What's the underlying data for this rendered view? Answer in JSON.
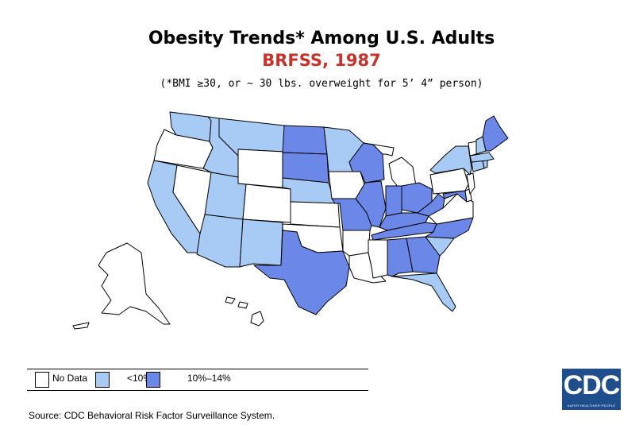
{
  "title": "Obesity Trends* Among U.S. Adults",
  "subtitle": "BRFSS, 1987",
  "note": "(*BMI ≥30, or ~ 30 lbs. overweight for 5’ 4” person)",
  "legend": {
    "items": [
      {
        "label": "No Data",
        "color": "#ffffff"
      },
      {
        "label": "<10%",
        "color": "#a8cbf5"
      },
      {
        "label": "10%–14%",
        "color": "#6b87e8"
      }
    ]
  },
  "source": "Source: CDC Behavioral Risk Factor Surveillance System.",
  "logo": {
    "text": "CDC",
    "tagline": "SAFER·HEALTHIER·PEOPLE"
  },
  "colors": {
    "no_data": "#ffffff",
    "under_10": "#a8cbf5",
    "from_10_to_14": "#6b87e8",
    "border": "#000000"
  },
  "states": [
    {
      "name": "WA",
      "category": "under_10"
    },
    {
      "name": "OR",
      "category": "no_data"
    },
    {
      "name": "CA",
      "category": "under_10"
    },
    {
      "name": "NV",
      "category": "no_data"
    },
    {
      "name": "ID",
      "category": "under_10"
    },
    {
      "name": "MT",
      "category": "under_10"
    },
    {
      "name": "WY",
      "category": "no_data"
    },
    {
      "name": "UT",
      "category": "under_10"
    },
    {
      "name": "AZ",
      "category": "under_10"
    },
    {
      "name": "CO",
      "category": "no_data"
    },
    {
      "name": "NM",
      "category": "under_10"
    },
    {
      "name": "ND",
      "category": "from_10_to_14"
    },
    {
      "name": "SD",
      "category": "from_10_to_14"
    },
    {
      "name": "NE",
      "category": "under_10"
    },
    {
      "name": "KS",
      "category": "no_data"
    },
    {
      "name": "OK",
      "category": "no_data"
    },
    {
      "name": "TX",
      "category": "from_10_to_14"
    },
    {
      "name": "MN",
      "category": "under_10"
    },
    {
      "name": "IA",
      "category": "no_data"
    },
    {
      "name": "MO",
      "category": "from_10_to_14"
    },
    {
      "name": "AR",
      "category": "no_data"
    },
    {
      "name": "LA",
      "category": "no_data"
    },
    {
      "name": "WI",
      "category": "from_10_to_14"
    },
    {
      "name": "IL",
      "category": "from_10_to_14"
    },
    {
      "name": "MI",
      "category": "no_data"
    },
    {
      "name": "IN",
      "category": "from_10_to_14"
    },
    {
      "name": "OH",
      "category": "from_10_to_14"
    },
    {
      "name": "KY",
      "category": "from_10_to_14"
    },
    {
      "name": "TN",
      "category": "from_10_to_14"
    },
    {
      "name": "MS",
      "category": "no_data"
    },
    {
      "name": "AL",
      "category": "from_10_to_14"
    },
    {
      "name": "GA",
      "category": "from_10_to_14"
    },
    {
      "name": "FL",
      "category": "under_10"
    },
    {
      "name": "SC",
      "category": "under_10"
    },
    {
      "name": "NC",
      "category": "from_10_to_14"
    },
    {
      "name": "VA",
      "category": "no_data"
    },
    {
      "name": "WV",
      "category": "from_10_to_14"
    },
    {
      "name": "MD",
      "category": "from_10_to_14"
    },
    {
      "name": "DE",
      "category": "no_data"
    },
    {
      "name": "PA",
      "category": "no_data"
    },
    {
      "name": "NJ",
      "category": "no_data"
    },
    {
      "name": "NY",
      "category": "under_10"
    },
    {
      "name": "CT",
      "category": "under_10"
    },
    {
      "name": "RI",
      "category": "under_10"
    },
    {
      "name": "MA",
      "category": "under_10"
    },
    {
      "name": "VT",
      "category": "no_data"
    },
    {
      "name": "NH",
      "category": "under_10"
    },
    {
      "name": "ME",
      "category": "from_10_to_14"
    },
    {
      "name": "AK",
      "category": "no_data"
    },
    {
      "name": "HI",
      "category": "no_data"
    }
  ]
}
